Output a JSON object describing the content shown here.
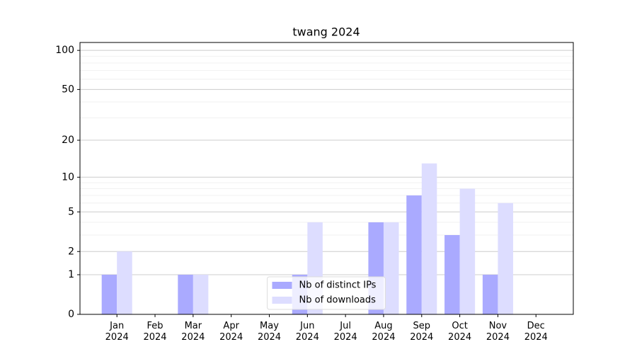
{
  "chart_data": {
    "type": "bar",
    "title": "twang 2024",
    "categories": [
      "Jan\n2024",
      "Feb\n2024",
      "Mar\n2024",
      "Apr\n2024",
      "May\n2024",
      "Jun\n2024",
      "Jul\n2024",
      "Aug\n2024",
      "Sep\n2024",
      "Oct\n2024",
      "Nov\n2024",
      "Dec\n2024"
    ],
    "series": [
      {
        "name": "Nb of distinct IPs",
        "color": "#aaaaff",
        "values": [
          1,
          0,
          1,
          0,
          0,
          1,
          0,
          4,
          7,
          3,
          1,
          0
        ]
      },
      {
        "name": "Nb of downloads",
        "color": "#ddddff",
        "values": [
          2,
          0,
          1,
          0,
          0,
          4,
          0,
          4,
          13,
          8,
          6,
          0
        ]
      }
    ],
    "yscale": "log1p",
    "ylim": [
      0,
      115
    ],
    "yticks": [
      0,
      1,
      2,
      5,
      10,
      20,
      50,
      100
    ],
    "minor_yticks": [
      3,
      4,
      6,
      7,
      8,
      9,
      30,
      40,
      60,
      70,
      80,
      90
    ],
    "grid": true,
    "legend": "lower center"
  }
}
